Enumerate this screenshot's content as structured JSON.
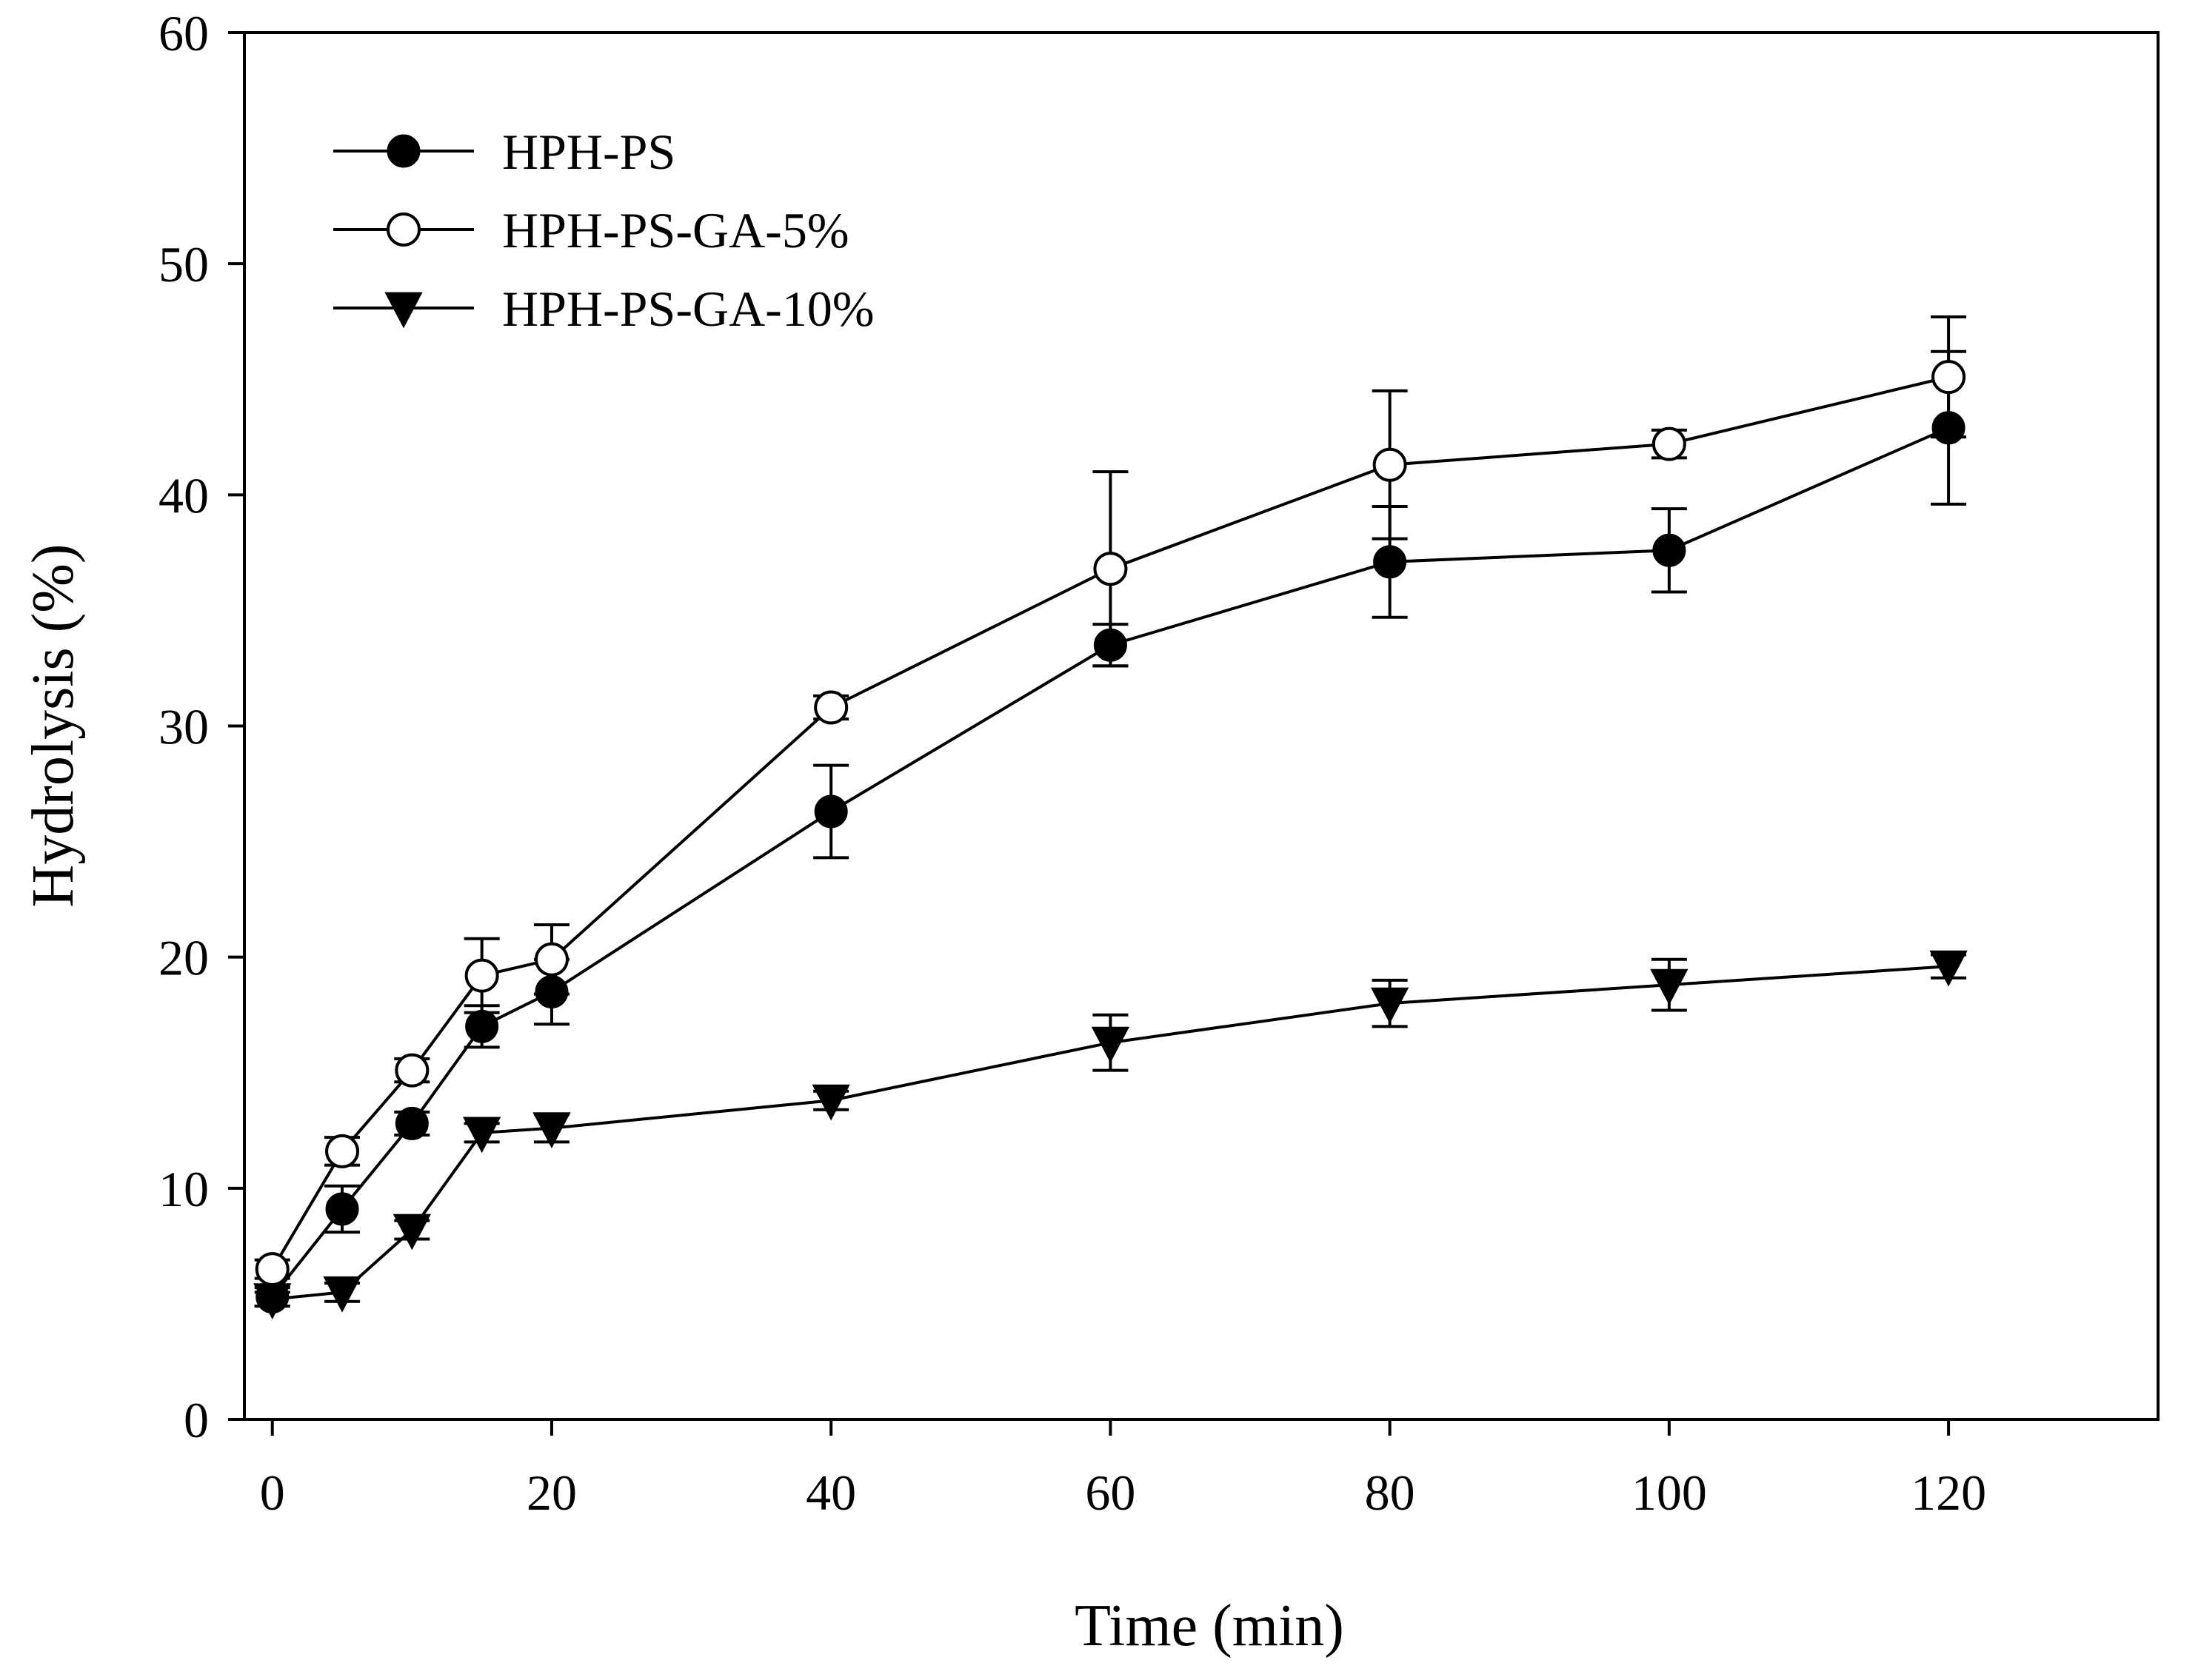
{
  "chart_data": {
    "type": "line",
    "title": "",
    "xlabel": "Time (min)",
    "ylabel": "Hydrolysis (%)",
    "xlim": [
      -2,
      135
    ],
    "ylim": [
      0,
      60
    ],
    "xticks": [
      0,
      20,
      40,
      60,
      80,
      100,
      120
    ],
    "yticks": [
      0,
      10,
      20,
      30,
      40,
      50,
      60
    ],
    "grid": false,
    "legend_position": "top-left",
    "x": [
      0,
      5,
      10,
      15,
      20,
      40,
      60,
      80,
      100,
      120
    ],
    "series": [
      {
        "name": "HPH-PS",
        "marker": "filled-circle",
        "values": [
          5.3,
          9.1,
          12.8,
          17.0,
          18.5,
          26.3,
          33.5,
          37.1,
          37.6,
          42.9
        ],
        "errors": [
          0.4,
          1.0,
          0.5,
          0.9,
          1.4,
          2.0,
          0.9,
          2.4,
          1.8,
          3.3
        ]
      },
      {
        "name": "HPH-PS-GA-5%",
        "marker": "open-circle",
        "values": [
          6.5,
          11.6,
          15.1,
          19.2,
          19.9,
          30.8,
          36.8,
          41.3,
          42.2,
          45.1
        ],
        "errors": [
          0.4,
          0.6,
          0.5,
          1.6,
          1.5,
          0.5,
          4.2,
          3.2,
          0.6,
          2.6
        ]
      },
      {
        "name": "HPH-PS-GA-10%",
        "marker": "filled-triangle-down",
        "values": [
          5.2,
          5.5,
          8.2,
          12.4,
          12.6,
          13.8,
          16.3,
          18.0,
          18.8,
          19.6
        ],
        "errors": [
          0.3,
          0.4,
          0.4,
          0.4,
          0.6,
          0.4,
          1.2,
          1.0,
          1.1,
          0.5
        ]
      }
    ]
  }
}
